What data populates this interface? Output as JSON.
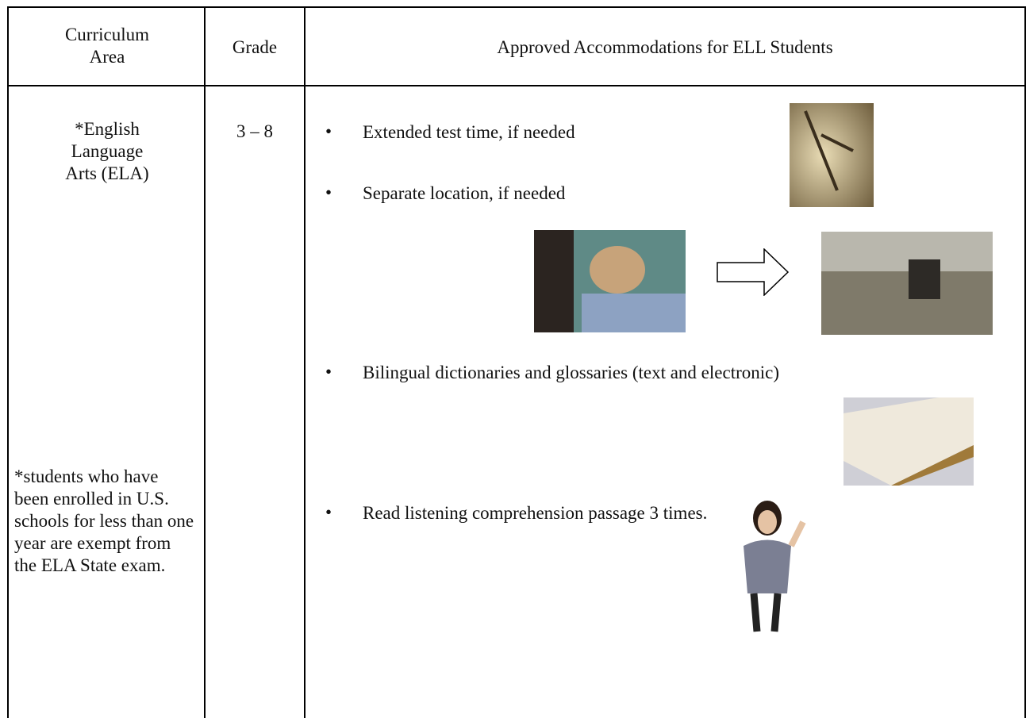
{
  "table": {
    "header": [
      "Curriculum Area",
      "Grade",
      "Approved Accommodations for ELL Students"
    ],
    "rows": [
      {
        "area": "*English Language Arts (ELA)",
        "note": "*students who have been enrolled in U.S. schools for less than one year are exempt from the ELA State exam.",
        "grade": "3 – 8",
        "accommodations": [
          "Extended test time, if needed",
          "Separate location, if needed",
          "Bilingual dictionaries and glossaries (text and electronic)",
          "Read listening comprehension passage 3 times."
        ]
      }
    ]
  }
}
